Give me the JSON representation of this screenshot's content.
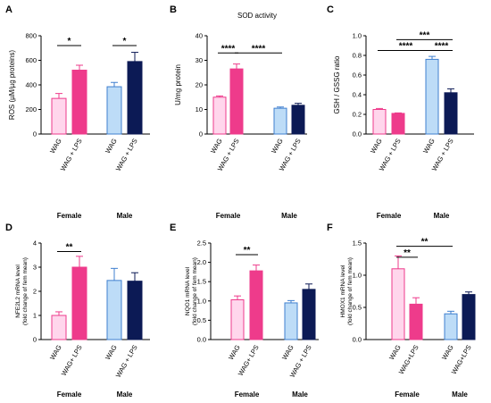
{
  "chart_data": [
    {
      "panel": "A",
      "type": "bar",
      "title": "",
      "ylabel": "ROS (µM/µg proteins)",
      "ylim": [
        0,
        800
      ],
      "yticks": [
        "0",
        "200",
        "400",
        "600",
        "800"
      ],
      "categories": [
        "WAG",
        "WAG + LPS",
        "WAG",
        "WAG + LPS"
      ],
      "groups": [
        "Female",
        "Male"
      ],
      "values": [
        290,
        520,
        385,
        590
      ],
      "errors": [
        40,
        40,
        35,
        75
      ],
      "significance": [
        {
          "label": "*",
          "from": 0,
          "to": 1,
          "y": 720
        },
        {
          "label": "*",
          "from": 2,
          "to": 3,
          "y": 720
        }
      ]
    },
    {
      "panel": "B",
      "type": "bar",
      "title": "SOD activity",
      "ylabel": "U/mg protein",
      "ylim": [
        0,
        40
      ],
      "yticks": [
        "0",
        "10",
        "20",
        "30",
        "40"
      ],
      "categories": [
        "WAG",
        "WAG + LPS",
        "WAG",
        "WAG + LPS"
      ],
      "groups": [
        "Female",
        "Male"
      ],
      "values": [
        15,
        26.5,
        10.5,
        11.7
      ],
      "errors": [
        0.5,
        2,
        0.5,
        0.8
      ],
      "significance": [
        {
          "label": "****",
          "from": 0,
          "to": 1,
          "y": 33
        },
        {
          "label": "****",
          "from": 1,
          "to": 2,
          "y": 33
        }
      ]
    },
    {
      "panel": "C",
      "type": "bar",
      "title": "",
      "ylabel": "GSH / GSSG ratio",
      "ylim": [
        0,
        1.0
      ],
      "yticks": [
        "0.0",
        "0.2",
        "0.4",
        "0.6",
        "0.8",
        "1.0"
      ],
      "categories": [
        "WAG",
        "WAG + LPS",
        "WAG",
        "WAG + LPS"
      ],
      "groups": [
        "Female",
        "Male"
      ],
      "values": [
        0.25,
        0.21,
        0.76,
        0.42
      ],
      "errors": [
        0.01,
        0.005,
        0.03,
        0.04
      ],
      "significance": [
        {
          "label": "****",
          "from": 0,
          "to": 2,
          "y": 0.85
        },
        {
          "label": "***",
          "from": 1,
          "to": 3,
          "y": 0.96
        },
        {
          "label": "****",
          "from": 2,
          "to": 3,
          "y": 0.85
        }
      ]
    },
    {
      "panel": "D",
      "type": "bar",
      "title": "",
      "ylabel": "NFE2L2 mRNA level",
      "ylabel2": "(fold change of fem mean)",
      "ylim": [
        0,
        4
      ],
      "yticks": [
        "0",
        "1",
        "2",
        "3",
        "4"
      ],
      "categories": [
        "WAG",
        "WAG+ LPS",
        "WAG",
        "WAG + LPS"
      ],
      "groups": [
        "Female",
        "Male"
      ],
      "values": [
        1.0,
        3.0,
        2.45,
        2.42
      ],
      "errors": [
        0.15,
        0.45,
        0.5,
        0.35
      ],
      "significance": [
        {
          "label": "**",
          "from": 0,
          "to": 1,
          "y": 3.65
        }
      ]
    },
    {
      "panel": "E",
      "type": "bar",
      "title": "",
      "ylabel": "NQO1 mRNA level",
      "ylabel2": "(fold change of fem mean)",
      "ylim": [
        0,
        2.5
      ],
      "yticks": [
        "0.0",
        "0.5",
        "1.0",
        "1.5",
        "2.0",
        "2.5"
      ],
      "categories": [
        "WAG",
        "WAG+ LPS",
        "WAG",
        "WAG + LPS"
      ],
      "groups": [
        "Female",
        "Male"
      ],
      "values": [
        1.03,
        1.78,
        0.95,
        1.3
      ],
      "errors": [
        0.1,
        0.15,
        0.06,
        0.14
      ],
      "significance": [
        {
          "label": "**",
          "from": 0,
          "to": 1,
          "y": 2.2
        }
      ]
    },
    {
      "panel": "F",
      "type": "bar",
      "title": "",
      "ylabel": "HMOX1 mRNA level",
      "ylabel2": "(fold change of fem mean)",
      "ylim": [
        0,
        1.5
      ],
      "yticks": [
        "0.0",
        "0.5",
        "1.0",
        "1.5"
      ],
      "categories": [
        "WAG",
        "WAG+LPS",
        "WAG",
        "WAG+LPS"
      ],
      "groups": [
        "Female",
        "Male"
      ],
      "values": [
        1.1,
        0.55,
        0.4,
        0.7
      ],
      "errors": [
        0.2,
        0.1,
        0.04,
        0.04
      ],
      "significance": [
        {
          "label": "**",
          "from": 0,
          "to": 2,
          "y": 1.45
        },
        {
          "label": "**",
          "from": 0,
          "to": 1,
          "y": 1.28
        }
      ]
    }
  ],
  "colors": {
    "fill": [
      "#ffd6ec",
      "#ee3b8b",
      "#bddcf7",
      "#0c1a55"
    ],
    "stroke": [
      "#ee3b8b",
      "#ee3b8b",
      "#3f7fcf",
      "#0c1a55"
    ]
  }
}
